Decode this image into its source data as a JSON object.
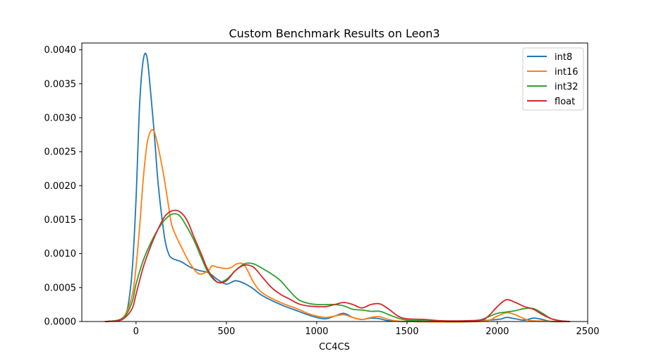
{
  "chart_data": {
    "type": "line",
    "title": "Custom Benchmark Results on Leon3",
    "xlabel": "CC4CS",
    "ylabel": "",
    "xlim": [
      -300,
      2500
    ],
    "ylim": [
      0,
      0.0041
    ],
    "xticks": [
      0,
      500,
      1000,
      1500,
      2000,
      2500
    ],
    "xtick_labels": [
      "0",
      "500",
      "1000",
      "1500",
      "2000",
      "2500"
    ],
    "yticks": [
      0,
      0.0005,
      0.001,
      0.0015,
      0.002,
      0.0025,
      0.003,
      0.0035,
      0.004
    ],
    "ytick_labels": [
      "0.0000",
      "0.0005",
      "0.0010",
      "0.0015",
      "0.0020",
      "0.0025",
      "0.0030",
      "0.0035",
      "0.0040"
    ],
    "grid": false,
    "legend_position": "top-right",
    "series": [
      {
        "name": "int8",
        "color": "#1f77b4",
        "points": [
          [
            -170,
            0
          ],
          [
            -100,
            2e-05
          ],
          [
            -60,
            0.0001
          ],
          [
            -40,
            0.0003
          ],
          [
            -20,
            0.0008
          ],
          [
            0,
            0.0018
          ],
          [
            20,
            0.0032
          ],
          [
            40,
            0.00385
          ],
          [
            60,
            0.0039
          ],
          [
            80,
            0.0034
          ],
          [
            100,
            0.0028
          ],
          [
            120,
            0.0021
          ],
          [
            140,
            0.0016
          ],
          [
            160,
            0.0012
          ],
          [
            180,
            0.001
          ],
          [
            200,
            0.00093
          ],
          [
            250,
            0.00088
          ],
          [
            300,
            0.0008
          ],
          [
            350,
            0.00075
          ],
          [
            400,
            0.00072
          ],
          [
            450,
            0.00062
          ],
          [
            500,
            0.00055
          ],
          [
            550,
            0.0006
          ],
          [
            600,
            0.00056
          ],
          [
            650,
            0.00048
          ],
          [
            700,
            0.00038
          ],
          [
            800,
            0.00025
          ],
          [
            900,
            0.00015
          ],
          [
            950,
            0.0001
          ],
          [
            1000,
            6e-05
          ],
          [
            1050,
            4e-05
          ],
          [
            1100,
            8e-05
          ],
          [
            1150,
            0.00012
          ],
          [
            1200,
            6e-05
          ],
          [
            1250,
            3e-05
          ],
          [
            1300,
            5e-05
          ],
          [
            1350,
            4e-05
          ],
          [
            1400,
            1e-05
          ],
          [
            1500,
            0
          ],
          [
            1800,
            0
          ],
          [
            2000,
            3e-05
          ],
          [
            2050,
            6e-05
          ],
          [
            2100,
            4e-05
          ],
          [
            2150,
            2e-05
          ],
          [
            2200,
            5e-05
          ],
          [
            2250,
            3e-05
          ],
          [
            2300,
            0
          ],
          [
            2400,
            0
          ]
        ]
      },
      {
        "name": "int16",
        "color": "#ff7f0e",
        "points": [
          [
            -170,
            0
          ],
          [
            -100,
            2e-05
          ],
          [
            -60,
            0.0001
          ],
          [
            -20,
            0.0004
          ],
          [
            0,
            0.0008
          ],
          [
            20,
            0.0014
          ],
          [
            40,
            0.0021
          ],
          [
            60,
            0.0026
          ],
          [
            80,
            0.0028
          ],
          [
            100,
            0.0028
          ],
          [
            120,
            0.0026
          ],
          [
            150,
            0.0022
          ],
          [
            180,
            0.0017
          ],
          [
            200,
            0.0014
          ],
          [
            250,
            0.0011
          ],
          [
            300,
            0.00085
          ],
          [
            350,
            0.0007
          ],
          [
            400,
            0.00075
          ],
          [
            420,
            0.00082
          ],
          [
            450,
            0.0008
          ],
          [
            500,
            0.00078
          ],
          [
            530,
            0.0008
          ],
          [
            560,
            0.00085
          ],
          [
            600,
            0.00083
          ],
          [
            650,
            0.00058
          ],
          [
            700,
            0.00042
          ],
          [
            800,
            0.00028
          ],
          [
            900,
            0.00018
          ],
          [
            950,
            0.00012
          ],
          [
            1000,
            8e-05
          ],
          [
            1050,
            6e-05
          ],
          [
            1100,
            8e-05
          ],
          [
            1150,
            0.0001
          ],
          [
            1200,
            6e-05
          ],
          [
            1250,
            3e-05
          ],
          [
            1300,
            6e-05
          ],
          [
            1350,
            7e-05
          ],
          [
            1400,
            3e-05
          ],
          [
            1500,
            0
          ],
          [
            1900,
            0
          ],
          [
            2000,
            8e-05
          ],
          [
            2050,
            0.00013
          ],
          [
            2100,
            0.0001
          ],
          [
            2150,
            4e-05
          ],
          [
            2200,
            1e-05
          ],
          [
            2400,
            0
          ]
        ]
      },
      {
        "name": "int32",
        "color": "#2ca02c",
        "points": [
          [
            -170,
            0
          ],
          [
            -100,
            2e-05
          ],
          [
            -60,
            8e-05
          ],
          [
            -20,
            0.0003
          ],
          [
            0,
            0.00055
          ],
          [
            40,
            0.0009
          ],
          [
            80,
            0.00115
          ],
          [
            120,
            0.00135
          ],
          [
            160,
            0.0015
          ],
          [
            200,
            0.00158
          ],
          [
            240,
            0.00156
          ],
          [
            280,
            0.0014
          ],
          [
            320,
            0.0012
          ],
          [
            360,
            0.00095
          ],
          [
            400,
            0.00072
          ],
          [
            450,
            0.00058
          ],
          [
            500,
            0.00062
          ],
          [
            550,
            0.00075
          ],
          [
            600,
            0.00085
          ],
          [
            650,
            0.00085
          ],
          [
            700,
            0.00078
          ],
          [
            750,
            0.0007
          ],
          [
            800,
            0.0006
          ],
          [
            850,
            0.00045
          ],
          [
            900,
            0.00032
          ],
          [
            950,
            0.00027
          ],
          [
            1000,
            0.00025
          ],
          [
            1050,
            0.00025
          ],
          [
            1100,
            0.00025
          ],
          [
            1150,
            0.00023
          ],
          [
            1200,
            0.00018
          ],
          [
            1250,
            0.00017
          ],
          [
            1300,
            0.00015
          ],
          [
            1350,
            0.00015
          ],
          [
            1400,
            0.0001
          ],
          [
            1450,
            5e-05
          ],
          [
            1500,
            2e-05
          ],
          [
            1600,
            1e-05
          ],
          [
            1800,
            0
          ],
          [
            1900,
            2e-05
          ],
          [
            1950,
            7e-05
          ],
          [
            2000,
            0.00012
          ],
          [
            2050,
            0.00014
          ],
          [
            2100,
            0.00016
          ],
          [
            2150,
            0.00019
          ],
          [
            2200,
            0.00019
          ],
          [
            2250,
            0.00012
          ],
          [
            2300,
            4e-05
          ],
          [
            2350,
            1e-05
          ],
          [
            2400,
            0
          ]
        ]
      },
      {
        "name": "float",
        "color": "#d62728",
        "points": [
          [
            -170,
            0
          ],
          [
            -100,
            1e-05
          ],
          [
            -60,
            6e-05
          ],
          [
            -20,
            0.0002
          ],
          [
            0,
            0.0004
          ],
          [
            40,
            0.0008
          ],
          [
            80,
            0.0011
          ],
          [
            120,
            0.00135
          ],
          [
            160,
            0.00155
          ],
          [
            200,
            0.00163
          ],
          [
            240,
            0.00162
          ],
          [
            280,
            0.0015
          ],
          [
            320,
            0.00125
          ],
          [
            360,
            0.001
          ],
          [
            400,
            0.00075
          ],
          [
            450,
            0.00058
          ],
          [
            500,
            0.0006
          ],
          [
            550,
            0.00075
          ],
          [
            600,
            0.00083
          ],
          [
            650,
            0.0008
          ],
          [
            700,
            0.00065
          ],
          [
            750,
            0.0005
          ],
          [
            800,
            0.0004
          ],
          [
            850,
            0.00033
          ],
          [
            900,
            0.00026
          ],
          [
            950,
            0.00023
          ],
          [
            1000,
            0.00022
          ],
          [
            1050,
            0.00022
          ],
          [
            1100,
            0.00025
          ],
          [
            1150,
            0.00028
          ],
          [
            1200,
            0.00025
          ],
          [
            1250,
            0.0002
          ],
          [
            1300,
            0.00025
          ],
          [
            1350,
            0.00026
          ],
          [
            1400,
            0.00018
          ],
          [
            1450,
            8e-05
          ],
          [
            1500,
            4e-05
          ],
          [
            1600,
            3e-05
          ],
          [
            1700,
            1e-05
          ],
          [
            1900,
            2e-05
          ],
          [
            1950,
            8e-05
          ],
          [
            2000,
            0.00022
          ],
          [
            2050,
            0.00032
          ],
          [
            2100,
            0.00028
          ],
          [
            2150,
            0.00022
          ],
          [
            2200,
            0.00018
          ],
          [
            2250,
            0.0001
          ],
          [
            2300,
            4e-05
          ],
          [
            2350,
            1e-05
          ],
          [
            2400,
            0
          ]
        ]
      }
    ]
  }
}
